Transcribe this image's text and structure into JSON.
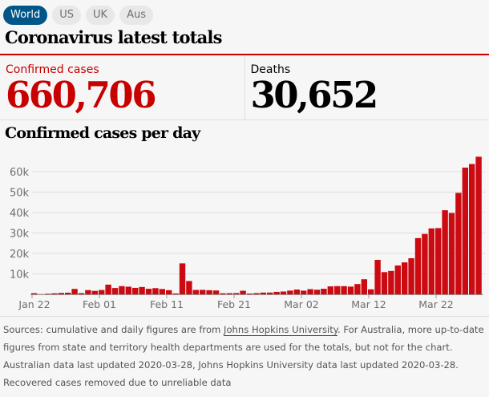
{
  "tabs": [
    {
      "label": "World",
      "active": true
    },
    {
      "label": "US"
    },
    {
      "label": "UK"
    },
    {
      "label": "Aus"
    }
  ],
  "title": "Coronavirus latest totals",
  "totals": {
    "confirmed_label": "Confirmed cases",
    "confirmed_value": "660,706",
    "deaths_label": "Deaths",
    "deaths_value": "30,652"
  },
  "chart_title": "Confirmed cases per day",
  "colors": {
    "accent": "#c70000",
    "tab_active": "#005689",
    "bar": "#cc0a11"
  },
  "chart_data": {
    "type": "bar",
    "title": "Confirmed cases per day",
    "start_date": "2020-01-22",
    "x_tick_labels": [
      "Jan 22",
      "Feb 01",
      "Feb 11",
      "Feb 21",
      "Mar 02",
      "Mar 12",
      "Mar 22"
    ],
    "y_tick_labels": [
      "10k",
      "20k",
      "30k",
      "40k",
      "50k",
      "60k"
    ],
    "ylim": [
      0,
      68000
    ],
    "grid": true,
    "values": [
      555,
      98,
      289,
      493,
      684,
      809,
      2651,
      588,
      2068,
      1693,
      2111,
      4749,
      3094,
      4011,
      3743,
      3159,
      3597,
      2729,
      3030,
      2612,
      2034,
      426,
      15152,
      6519,
      2145,
      2188,
      2016,
      1880,
      503,
      558,
      621,
      1752,
      388,
      588,
      860,
      872,
      1207,
      1377,
      1827,
      2349,
      1796,
      2520,
      2266,
      2741,
      3899,
      4028,
      3991,
      3784,
      5026,
      7370,
      2447,
      16861,
      10866,
      11442,
      14104,
      15615,
      17664,
      27512,
      29524,
      32245,
      32398,
      41123,
      39774,
      49598,
      61965,
      63729,
      67286
    ]
  },
  "footer": {
    "pre": "Sources: cumulative and daily figures are from ",
    "link": "Johns Hopkins University",
    "post": ". For Australia, more up-to-date figures from state and territory health departments are used for the totals, but not for the chart. Australian data last updated 2020-03-28, Johns Hopkins University data last updated 2020-03-28. Recovered cases removed due to unreliable data"
  }
}
